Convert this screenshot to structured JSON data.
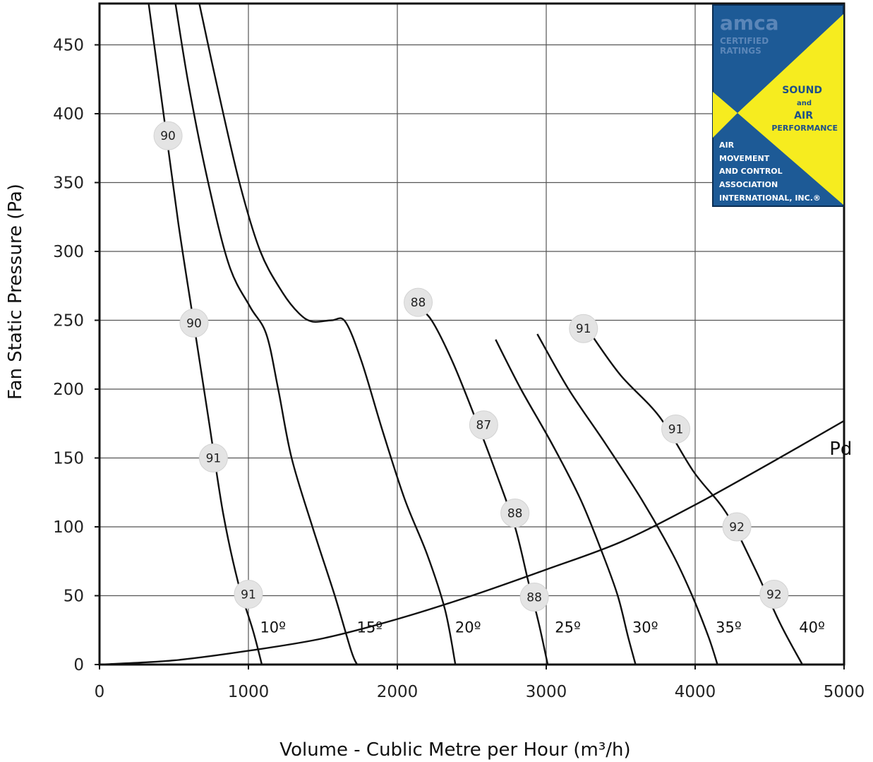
{
  "chart_data": {
    "type": "line",
    "title": "",
    "xlabel": "Volume - Cublic Metre per Hour (m³/h)",
    "ylabel": "Fan Static Pressure (Pa)",
    "xlim": [
      0,
      5000
    ],
    "ylim": [
      0,
      480
    ],
    "x_ticks": [
      0,
      1000,
      2000,
      3000,
      4000,
      5000
    ],
    "y_ticks": [
      0,
      50,
      100,
      150,
      200,
      250,
      300,
      350,
      400,
      450
    ],
    "grid": true,
    "series": [
      {
        "name": "10º",
        "x": [
          330,
          430,
          530,
          630,
          730,
          830,
          930,
          1030,
          1090
        ],
        "y": [
          480,
          400,
          320,
          250,
          180,
          110,
          60,
          25,
          0
        ]
      },
      {
        "name": "15º",
        "x": [
          510,
          600,
          730,
          870,
          1010,
          1120,
          1200,
          1290,
          1430,
          1580,
          1690,
          1730
        ],
        "y": [
          480,
          420,
          350,
          290,
          260,
          240,
          200,
          150,
          100,
          50,
          10,
          0
        ]
      },
      {
        "name": "20º",
        "x": [
          670,
          790,
          940,
          1080,
          1230,
          1340,
          1430,
          1560,
          1650,
          1760,
          1900,
          2050,
          2200,
          2320,
          2390
        ],
        "y": [
          480,
          420,
          350,
          300,
          270,
          255,
          249,
          250,
          249,
          220,
          170,
          120,
          80,
          40,
          0
        ]
      },
      {
        "name": "25º",
        "x": [
          2130,
          2230,
          2370,
          2520,
          2660,
          2790,
          2880,
          2950,
          3010
        ],
        "y": [
          260,
          250,
          220,
          180,
          140,
          100,
          60,
          30,
          0
        ]
      },
      {
        "name": "30º",
        "x": [
          2660,
          2830,
          3040,
          3230,
          3380,
          3480,
          3550,
          3600
        ],
        "y": [
          236,
          200,
          160,
          120,
          80,
          50,
          20,
          0
        ]
      },
      {
        "name": "35º",
        "x": [
          2940,
          3150,
          3400,
          3640,
          3850,
          3980,
          4090,
          4150
        ],
        "y": [
          240,
          200,
          160,
          120,
          80,
          50,
          20,
          0
        ]
      },
      {
        "name": "40º",
        "x": [
          3300,
          3500,
          3760,
          3990,
          4210,
          4400,
          4570,
          4720
        ],
        "y": [
          240,
          210,
          180,
          140,
          110,
          70,
          30,
          0
        ]
      },
      {
        "name": "Pd",
        "x": [
          0,
          500,
          1000,
          1500,
          2000,
          2500,
          3000,
          3500,
          4000,
          4500,
          5000
        ],
        "y": [
          0,
          3,
          10,
          19,
          33,
          50,
          69,
          89,
          116,
          146,
          177
        ]
      }
    ],
    "angle_labels": [
      {
        "text": "10º",
        "x": 1040,
        "y": 27
      },
      {
        "text": "15º",
        "x": 1690,
        "y": 27
      },
      {
        "text": "20º",
        "x": 2350,
        "y": 27
      },
      {
        "text": "25º",
        "x": 3020,
        "y": 27
      },
      {
        "text": "30º",
        "x": 3540,
        "y": 27
      },
      {
        "text": "35º",
        "x": 4100,
        "y": 27
      },
      {
        "text": "40º",
        "x": 4660,
        "y": 27
      }
    ],
    "pd_label": {
      "text": "Pd",
      "x": 5020,
      "y": 158
    },
    "efficiency_markers": [
      {
        "text": "90",
        "x": 460,
        "y": 384
      },
      {
        "text": "90",
        "x": 635,
        "y": 248
      },
      {
        "text": "91",
        "x": 765,
        "y": 150
      },
      {
        "text": "91",
        "x": 1000,
        "y": 51
      },
      {
        "text": "88",
        "x": 2140,
        "y": 263
      },
      {
        "text": "87",
        "x": 2580,
        "y": 174
      },
      {
        "text": "88",
        "x": 2790,
        "y": 110
      },
      {
        "text": "88",
        "x": 2920,
        "y": 49
      },
      {
        "text": "91",
        "x": 3250,
        "y": 244
      },
      {
        "text": "91",
        "x": 3870,
        "y": 171
      },
      {
        "text": "92",
        "x": 4280,
        "y": 100
      },
      {
        "text": "92",
        "x": 4530,
        "y": 51
      }
    ]
  },
  "logo": {
    "brand": "amca",
    "certified_line1": "CERTIFIED",
    "certified_line2": "RATINGS",
    "sound": "SOUND",
    "and": "and",
    "air": "AIR",
    "performance": "PERFORMANCE",
    "org_lines": [
      "AIR",
      "MOVEMENT",
      "AND CONTROL",
      "ASSOCIATION",
      "INTERNATIONAL, INC.®"
    ],
    "blue": "#1d5a96",
    "yellow": "#f6ec1f"
  }
}
